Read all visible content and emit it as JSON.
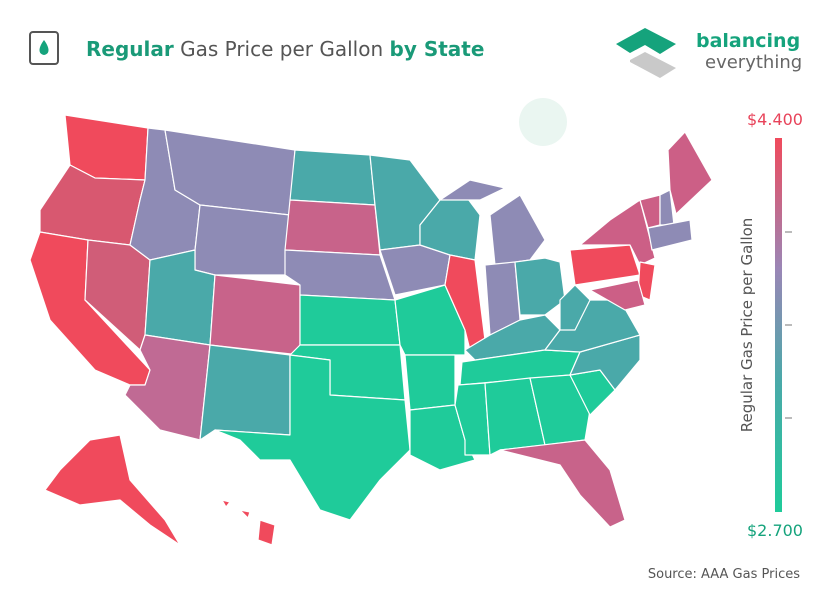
{
  "header": {
    "title_bold_1": "Regular",
    "title_regular": "Gas Price per Gallon",
    "title_bold_2": "by State"
  },
  "brand": {
    "line1": "balancing",
    "line2": "everything"
  },
  "legend": {
    "max_label": "$4.400",
    "min_label": "$2.700",
    "axis_label": "Regular Gas Price per Gallon"
  },
  "footer": {
    "source": "Source: AAA Gas Prices"
  }
}
